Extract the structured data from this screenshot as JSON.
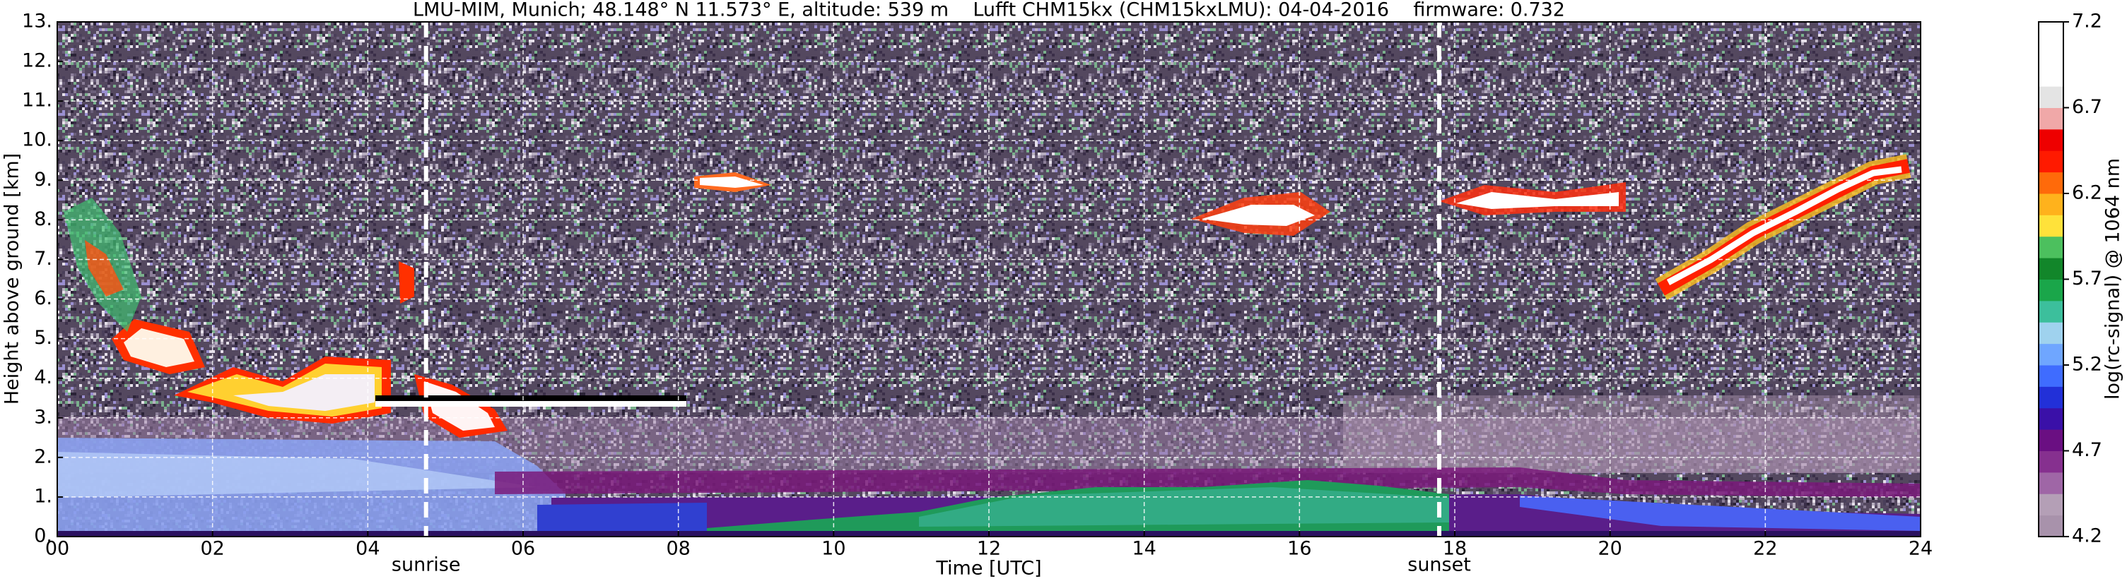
{
  "chart_data": {
    "type": "heatmap",
    "title": "LMU-MIM, Munich; 48.148° N 11.573° E, altitude: 539 m    Lufft CHM15kx (CHM15kxLMU): 04-04-2016    firmware: 0.732",
    "x_label": "Time [UTC]",
    "y_label": "Height above ground [km]",
    "xlim": [
      0,
      24
    ],
    "xticks": [
      {
        "value": 0,
        "label": "00"
      },
      {
        "value": 2,
        "label": "02"
      },
      {
        "value": 4,
        "label": "04"
      },
      {
        "value": 6,
        "label": "06"
      },
      {
        "value": 8,
        "label": "08"
      },
      10,
      12,
      14,
      16,
      18,
      20,
      22,
      24
    ],
    "ylim": [
      0,
      13
    ],
    "yticks": [
      {
        "value": 0,
        "label": "0."
      },
      {
        "value": 1,
        "label": "1."
      },
      {
        "value": 2,
        "label": "2."
      },
      {
        "value": 3,
        "label": "3."
      },
      {
        "value": 4,
        "label": "4."
      },
      {
        "value": 5,
        "label": "5."
      },
      {
        "value": 6,
        "label": "6."
      },
      {
        "value": 7,
        "label": "7."
      },
      {
        "value": 8,
        "label": "8."
      },
      {
        "value": 9,
        "label": "9."
      },
      {
        "value": 10,
        "label": "10."
      },
      {
        "value": 11,
        "label": "11."
      },
      {
        "value": 12,
        "label": "12."
      },
      {
        "value": 13,
        "label": "13."
      }
    ],
    "grid": true,
    "annotations": [
      {
        "text": "sunrise",
        "x": 4.75
      },
      {
        "text": "sunset",
        "x": 17.8
      }
    ],
    "colorbar": {
      "label": "log(rc-signal) @ 1064 nm",
      "lim": [
        4.2,
        7.2
      ],
      "ticks": [
        4.2,
        4.7,
        5.2,
        5.7,
        6.2,
        6.7,
        7.2
      ],
      "colors": [
        "#a892ab",
        "#b49fb6",
        "#9f66a6",
        "#86308f",
        "#6a0f82",
        "#3a10a8",
        "#2230d8",
        "#3f6cff",
        "#6fa6ff",
        "#9fd2ee",
        "#3cbf9c",
        "#1aa64a",
        "#12862a",
        "#4cc05e",
        "#ffe23a",
        "#ffb21c",
        "#ff6a0a",
        "#ff1a00",
        "#ee0000",
        "#f0a8a8",
        "#e4e4e4",
        "#ffffff",
        "#ffffff",
        "#ffffff"
      ]
    }
  }
}
